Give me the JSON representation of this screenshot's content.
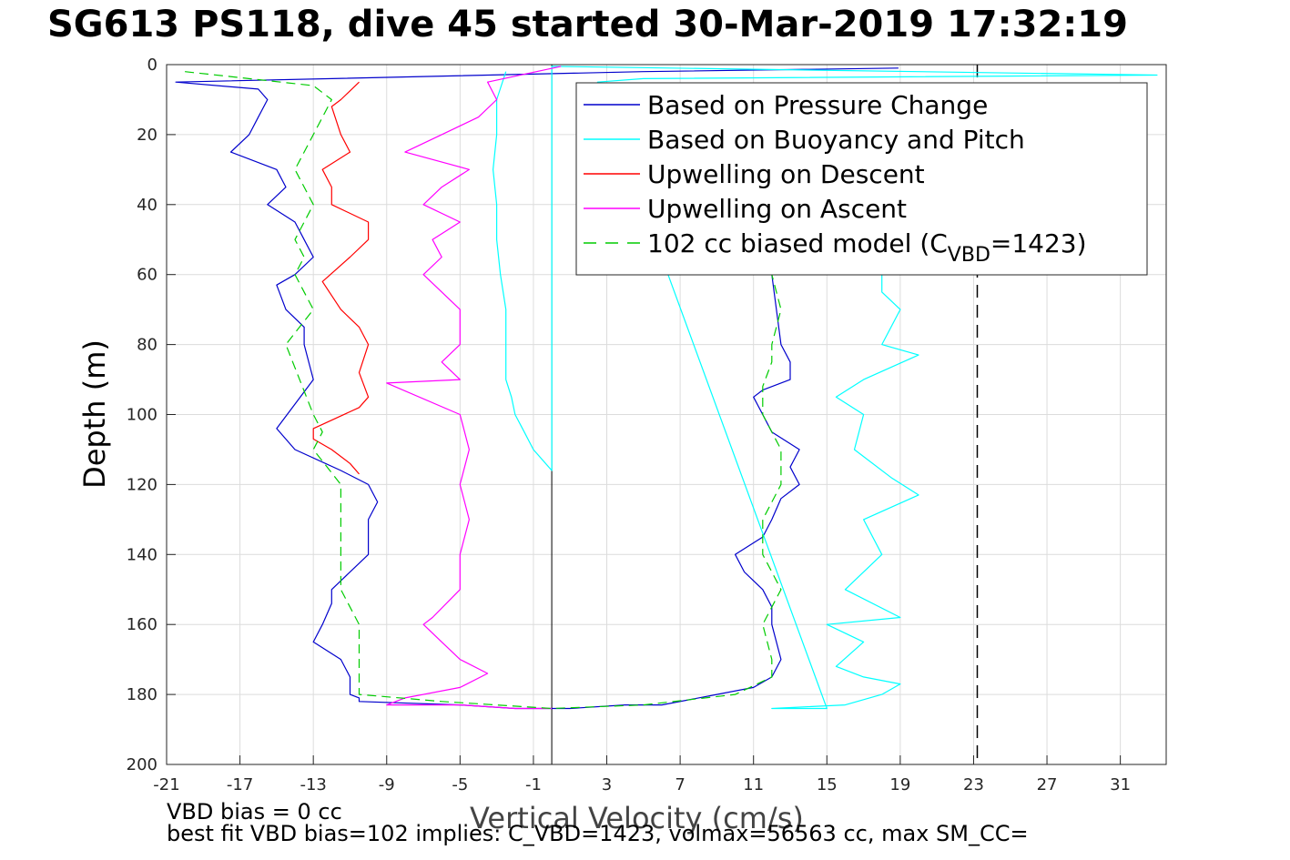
{
  "title": "SG613 PS118, dive 45 started 30-Mar-2019 17:32:19",
  "footer": {
    "line1": "VBD bias = 0 cc",
    "line2": "best fit VBD bias=102 implies: C_VBD=1423, volmax=56563 cc, max SM_CC="
  },
  "colors": {
    "pressure": "#0000cc",
    "buoyancy": "#00ffff",
    "upwelling_descent": "#ff0000",
    "upwelling_ascent": "#ff00ff",
    "model": "#00cc00"
  },
  "chart_data": {
    "type": "line",
    "xlabel": "Vertical Velocity (cm/s)",
    "ylabel": "Depth (m)",
    "xlim": [
      -21,
      33.5
    ],
    "ylim": [
      0,
      200
    ],
    "y_reversed": true,
    "xticks": [
      -21,
      -17,
      -13,
      -9,
      -5,
      -1,
      3,
      7,
      11,
      15,
      19,
      23,
      27,
      31
    ],
    "yticks": [
      0,
      20,
      40,
      60,
      80,
      100,
      120,
      140,
      160,
      180,
      200
    ],
    "grid": true,
    "legend_position": "top-right",
    "legend": [
      {
        "label": "Based on Pressure Change",
        "color": "#0000cc",
        "dash": "solid"
      },
      {
        "label": "Based on Buoyancy and Pitch",
        "color": "#00ffff",
        "dash": "solid"
      },
      {
        "label": "Upwelling on Descent",
        "color": "#ff0000",
        "dash": "solid"
      },
      {
        "label": "Upwelling on Ascent",
        "color": "#ff00ff",
        "dash": "solid"
      },
      {
        "label": "102 cc biased model (C",
        "sub": "VBD",
        "after": "=1423)",
        "color": "#00cc00",
        "dash": "dashed"
      }
    ],
    "vertical_lines": [
      {
        "x": 0,
        "style": "solid"
      },
      {
        "x": 23.2,
        "style": "dashed"
      }
    ],
    "series": [
      {
        "name": "Based on Pressure Change",
        "color": "#0000cc",
        "dash": "solid",
        "x": [
          18.9,
          5,
          -20.5,
          -16,
          -15.5,
          -16,
          -16.5,
          -17.5,
          -15,
          -14.5,
          -15.5,
          -14,
          -13.5,
          -13,
          -14,
          -15,
          -14.5,
          -13.5,
          -13.5,
          -13,
          -15,
          -14,
          -11.5,
          -10,
          -9.5,
          -10,
          -10,
          -12,
          -12,
          -12.5,
          -13,
          -11.5,
          -11,
          -11,
          -10.5,
          -10.5,
          -5,
          -2,
          1,
          4,
          6,
          9,
          11,
          12,
          12.5,
          12,
          12,
          11.5,
          10.5,
          10,
          11.5,
          12,
          12.5,
          13.5,
          13,
          13.5,
          12,
          11.5,
          11,
          11.5,
          13,
          13,
          12.5,
          12
        ],
        "y": [
          1,
          2,
          5,
          7,
          10,
          15,
          20,
          25,
          30,
          35,
          40,
          45,
          50,
          55,
          60,
          63,
          70,
          75,
          80,
          90,
          104,
          110,
          116,
          120,
          125,
          130,
          140,
          150,
          154,
          160,
          165,
          170,
          175,
          180,
          181,
          182,
          183,
          184,
          184,
          183,
          183,
          180,
          178,
          175,
          170,
          160,
          155,
          150,
          145,
          140,
          135,
          130,
          124,
          120,
          115,
          110,
          105,
          100,
          95,
          93,
          90,
          85,
          80,
          60
        ]
      },
      {
        "name": "Based on Buoyancy and Pitch",
        "color": "#00ffff",
        "dash": "solid",
        "x": [
          -2.5,
          -3,
          -3,
          -3,
          -3.2,
          -3,
          -3,
          -2.8,
          -2.5,
          -2.5,
          -2.5,
          -2.2,
          -2,
          -1.5,
          -1,
          0,
          0,
          33,
          5,
          2.5,
          15,
          12,
          16,
          18,
          19,
          17,
          15.5,
          17,
          15,
          19,
          16,
          18,
          17,
          20,
          18.5,
          16.5,
          17,
          15.5,
          17,
          20,
          18,
          19,
          18,
          18
        ],
        "y": [
          2,
          10,
          15,
          20,
          30,
          40,
          50,
          60,
          70,
          80,
          90,
          95,
          100,
          105,
          110,
          116,
          0.5,
          3,
          4,
          5,
          184,
          184,
          183,
          180,
          177,
          175,
          172,
          165,
          160,
          158,
          150,
          140,
          130,
          123,
          118,
          110,
          100,
          95,
          90,
          83,
          80,
          70,
          65,
          60
        ]
      },
      {
        "name": "Upwelling on Descent",
        "color": "#ff0000",
        "dash": "solid",
        "x": [
          -10.5,
          -11.5,
          -12,
          -11.5,
          -11,
          -12.5,
          -12,
          -12,
          -10,
          -10,
          -11,
          -12.5,
          -11.5,
          -10.5,
          -10,
          -10.5,
          -10,
          -10.5,
          -13,
          -13,
          -12,
          -11,
          -10.5
        ],
        "y": [
          5,
          10,
          12,
          20,
          25,
          30,
          35,
          40,
          45,
          50,
          55,
          62,
          70,
          75,
          80,
          88,
          95,
          98,
          104,
          107,
          110,
          114,
          117
        ]
      },
      {
        "name": "Upwelling on Ascent",
        "color": "#ff00ff",
        "dash": "solid",
        "x": [
          0.5,
          -3.5,
          -3,
          -4,
          -6,
          -8,
          -4.5,
          -6,
          -7,
          -5,
          -6.5,
          -6,
          -7,
          -5,
          -5,
          -6,
          -5,
          -9,
          -5,
          -4.5,
          -5,
          -4.5,
          -5,
          -5,
          -6.5,
          -7,
          -6,
          -5,
          -3.5,
          -5,
          -8,
          -9,
          -5,
          -2,
          0
        ],
        "y": [
          0.5,
          5,
          10,
          15,
          20,
          25,
          30,
          35,
          40,
          45,
          50,
          55,
          60,
          70,
          80,
          85,
          90,
          91,
          100,
          110,
          120,
          130,
          140,
          150,
          158,
          160,
          165,
          170,
          174,
          178,
          181,
          183,
          183,
          184,
          184
        ]
      },
      {
        "name": "102 cc biased model (CVBD=1423)",
        "color": "#00cc00",
        "dash": "dashed",
        "x": [
          -20,
          -13,
          -12,
          -13,
          -14,
          -13,
          -14,
          -13.5,
          -14,
          -13,
          -14.5,
          -13,
          -12.5,
          -13,
          -11.5,
          -11.5,
          -11.5,
          -10.5,
          -10.5,
          -10.5,
          -6,
          0,
          5,
          10,
          12,
          12,
          11.5,
          12.5,
          11.5,
          11.5,
          12.5,
          12.5,
          11.5,
          11.5,
          12,
          12,
          12.5,
          12
        ],
        "y": [
          2,
          6,
          10,
          20,
          30,
          40,
          50,
          55,
          60,
          70,
          80,
          100,
          105,
          110,
          120,
          140,
          150,
          160,
          170,
          180,
          182,
          184,
          183,
          180,
          175,
          170,
          160,
          150,
          140,
          130,
          120,
          110,
          100,
          92,
          85,
          80,
          70,
          60
        ]
      }
    ]
  }
}
